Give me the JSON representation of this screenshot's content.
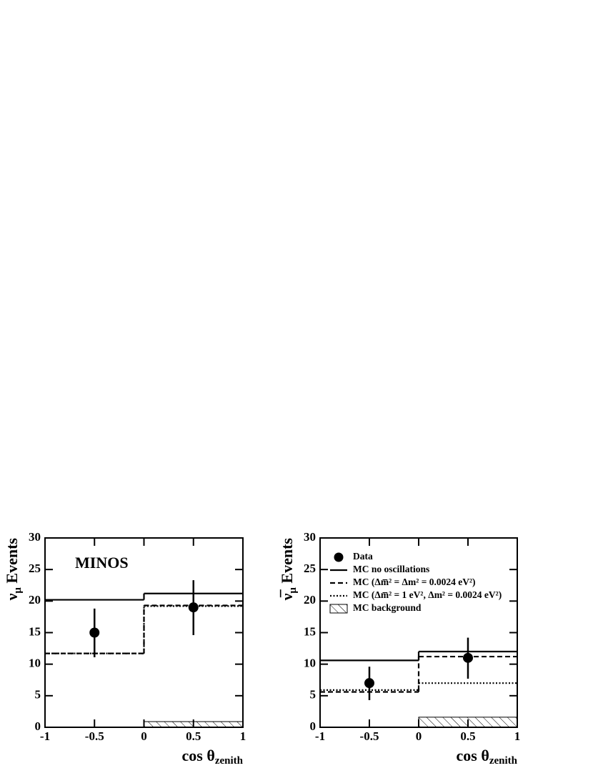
{
  "chart_data": [
    {
      "type": "histogram",
      "annotation": "MINOS",
      "ylabel": [
        "ν",
        "μ",
        " Events"
      ],
      "xlabel": [
        "cos θ",
        "zenith"
      ],
      "bins": [
        -1,
        0,
        1
      ],
      "xlim": [
        -1,
        1
      ],
      "ylim": [
        0,
        30
      ],
      "xticks": [
        -1,
        -0.5,
        0,
        0.5,
        1
      ],
      "yticks": [
        0,
        5,
        10,
        15,
        20,
        25,
        30
      ],
      "series": [
        {
          "style": "points",
          "color": "#000000",
          "values": [
            15,
            19
          ],
          "lower": [
            11.1,
            14.6
          ],
          "upper": [
            18.8,
            23.3
          ]
        },
        {
          "style": "solid",
          "color": "#000000",
          "values": [
            20.2,
            21.2
          ]
        },
        {
          "style": "dashed",
          "color": "#000000",
          "values": [
            11.7,
            19.3
          ]
        },
        {
          "style": "dotted",
          "color": "#000000",
          "values": [
            11.7,
            19.2
          ]
        },
        {
          "style": "hatched",
          "color": "#000000",
          "values": [
            0,
            0.9
          ]
        }
      ]
    },
    {
      "type": "histogram",
      "ylabel": [
        "ν̅",
        "μ",
        " Events"
      ],
      "xlabel": [
        "cos θ",
        "zenith"
      ],
      "bins": [
        -1,
        0,
        1
      ],
      "xlim": [
        -1,
        1
      ],
      "ylim": [
        0,
        30
      ],
      "xticks": [
        -1,
        -0.5,
        0,
        0.5,
        1
      ],
      "yticks": [
        0,
        5,
        10,
        15,
        20,
        25,
        30
      ],
      "legend": "upper left",
      "series": [
        {
          "name": "Data",
          "style": "points",
          "color": "#000000",
          "values": [
            7,
            11
          ],
          "lower": [
            4.3,
            7.7
          ],
          "upper": [
            9.6,
            14.2
          ]
        },
        {
          "name": "MC no oscillations",
          "style": "solid",
          "color": "#000000",
          "values": [
            10.6,
            12.0
          ]
        },
        {
          "name": "MC (Δm̅² = Δm² = 0.0024 eV²)",
          "style": "dashed",
          "color": "#000000",
          "values": [
            5.6,
            11.2
          ]
        },
        {
          "name": "MC (Δm̅² = 1 eV², Δm² = 0.0024 eV²)",
          "style": "dotted",
          "color": "#000000",
          "values": [
            5.9,
            7.0
          ]
        },
        {
          "name": "MC background",
          "style": "hatched",
          "color": "#000000",
          "values": [
            0,
            1.6
          ]
        }
      ]
    }
  ]
}
